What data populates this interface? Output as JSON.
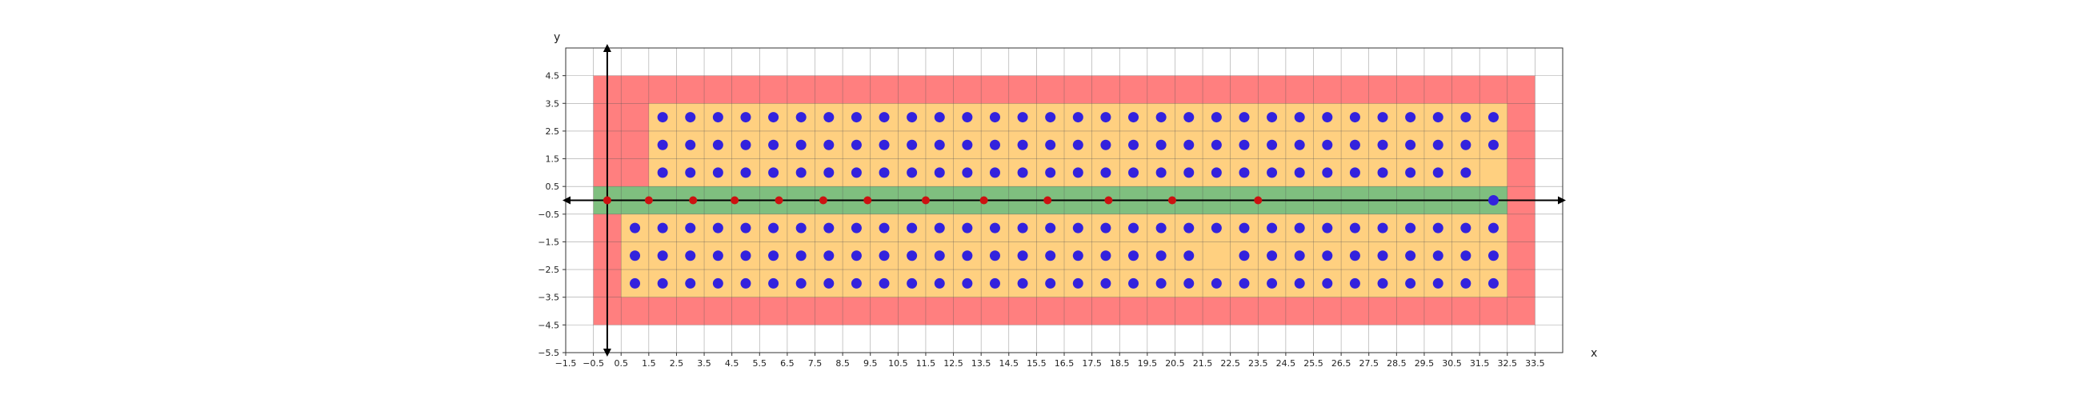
{
  "chart_data": {
    "type": "scatter",
    "title": "",
    "xlabel": "x",
    "ylabel": "y",
    "xlim": [
      -1.5,
      34.5
    ],
    "ylim": [
      -5.5,
      5.5
    ],
    "grid": true,
    "x_ticks": [
      "−1.5",
      "−0.5",
      "0.5",
      "1.5",
      "2.5",
      "3.5",
      "4.5",
      "5.5",
      "6.5",
      "7.5",
      "8.5",
      "9.5",
      "10.5",
      "11.5",
      "12.5",
      "13.5",
      "14.5",
      "15.5",
      "16.5",
      "17.5",
      "18.5",
      "19.5",
      "20.5",
      "21.5",
      "22.5",
      "23.5",
      "24.5",
      "25.5",
      "26.5",
      "27.5",
      "28.5",
      "29.5",
      "30.5",
      "31.5",
      "32.5",
      "33.5"
    ],
    "y_ticks": [
      "−5.5",
      "−4.5",
      "−3.5",
      "−2.5",
      "−1.5",
      "−0.5",
      "0.5",
      "1.5",
      "2.5",
      "3.5",
      "4.5"
    ],
    "regions": [
      {
        "color": "#ff7f7f",
        "x": [
          -0.5,
          33.5
        ],
        "y": [
          -4.5,
          4.5
        ]
      },
      {
        "color": "#ffd080",
        "x": [
          1.5,
          32.5
        ],
        "y": [
          0.5,
          3.5
        ]
      },
      {
        "color": "#ffd080",
        "x": [
          0.5,
          32.5
        ],
        "y": [
          -3.5,
          -0.5
        ]
      },
      {
        "color": "#7fbf7f",
        "x": [
          -0.5,
          32.5
        ],
        "y": [
          -0.5,
          0.5
        ]
      }
    ],
    "series": [
      {
        "marker_color": "#3322dd",
        "points": [
          [
            2,
            3
          ],
          [
            3,
            3
          ],
          [
            4,
            3
          ],
          [
            5,
            3
          ],
          [
            6,
            3
          ],
          [
            7,
            3
          ],
          [
            8,
            3
          ],
          [
            9,
            3
          ],
          [
            10,
            3
          ],
          [
            11,
            3
          ],
          [
            12,
            3
          ],
          [
            13,
            3
          ],
          [
            14,
            3
          ],
          [
            15,
            3
          ],
          [
            16,
            3
          ],
          [
            17,
            3
          ],
          [
            18,
            3
          ],
          [
            19,
            3
          ],
          [
            20,
            3
          ],
          [
            21,
            3
          ],
          [
            22,
            3
          ],
          [
            23,
            3
          ],
          [
            24,
            3
          ],
          [
            25,
            3
          ],
          [
            26,
            3
          ],
          [
            27,
            3
          ],
          [
            28,
            3
          ],
          [
            29,
            3
          ],
          [
            30,
            3
          ],
          [
            31,
            3
          ],
          [
            32,
            3
          ],
          [
            2,
            2
          ],
          [
            3,
            2
          ],
          [
            4,
            2
          ],
          [
            5,
            2
          ],
          [
            6,
            2
          ],
          [
            7,
            2
          ],
          [
            8,
            2
          ],
          [
            9,
            2
          ],
          [
            10,
            2
          ],
          [
            11,
            2
          ],
          [
            12,
            2
          ],
          [
            13,
            2
          ],
          [
            14,
            2
          ],
          [
            15,
            2
          ],
          [
            16,
            2
          ],
          [
            17,
            2
          ],
          [
            18,
            2
          ],
          [
            19,
            2
          ],
          [
            20,
            2
          ],
          [
            21,
            2
          ],
          [
            22,
            2
          ],
          [
            23,
            2
          ],
          [
            24,
            2
          ],
          [
            25,
            2
          ],
          [
            26,
            2
          ],
          [
            27,
            2
          ],
          [
            28,
            2
          ],
          [
            29,
            2
          ],
          [
            30,
            2
          ],
          [
            31,
            2
          ],
          [
            32,
            2
          ],
          [
            2,
            1
          ],
          [
            3,
            1
          ],
          [
            4,
            1
          ],
          [
            5,
            1
          ],
          [
            6,
            1
          ],
          [
            7,
            1
          ],
          [
            8,
            1
          ],
          [
            9,
            1
          ],
          [
            10,
            1
          ],
          [
            11,
            1
          ],
          [
            12,
            1
          ],
          [
            13,
            1
          ],
          [
            14,
            1
          ],
          [
            15,
            1
          ],
          [
            16,
            1
          ],
          [
            17,
            1
          ],
          [
            18,
            1
          ],
          [
            19,
            1
          ],
          [
            20,
            1
          ],
          [
            21,
            1
          ],
          [
            22,
            1
          ],
          [
            23,
            1
          ],
          [
            24,
            1
          ],
          [
            25,
            1
          ],
          [
            26,
            1
          ],
          [
            27,
            1
          ],
          [
            28,
            1
          ],
          [
            29,
            1
          ],
          [
            30,
            1
          ],
          [
            31,
            1
          ],
          [
            32,
            0
          ],
          [
            1,
            -1
          ],
          [
            2,
            -1
          ],
          [
            3,
            -1
          ],
          [
            4,
            -1
          ],
          [
            5,
            -1
          ],
          [
            6,
            -1
          ],
          [
            7,
            -1
          ],
          [
            8,
            -1
          ],
          [
            9,
            -1
          ],
          [
            10,
            -1
          ],
          [
            11,
            -1
          ],
          [
            12,
            -1
          ],
          [
            13,
            -1
          ],
          [
            14,
            -1
          ],
          [
            15,
            -1
          ],
          [
            16,
            -1
          ],
          [
            17,
            -1
          ],
          [
            18,
            -1
          ],
          [
            19,
            -1
          ],
          [
            20,
            -1
          ],
          [
            21,
            -1
          ],
          [
            22,
            -1
          ],
          [
            23,
            -1
          ],
          [
            24,
            -1
          ],
          [
            25,
            -1
          ],
          [
            26,
            -1
          ],
          [
            27,
            -1
          ],
          [
            28,
            -1
          ],
          [
            29,
            -1
          ],
          [
            30,
            -1
          ],
          [
            31,
            -1
          ],
          [
            32,
            -1
          ],
          [
            1,
            -2
          ],
          [
            2,
            -2
          ],
          [
            3,
            -2
          ],
          [
            4,
            -2
          ],
          [
            5,
            -2
          ],
          [
            6,
            -2
          ],
          [
            7,
            -2
          ],
          [
            8,
            -2
          ],
          [
            9,
            -2
          ],
          [
            10,
            -2
          ],
          [
            11,
            -2
          ],
          [
            12,
            -2
          ],
          [
            13,
            -2
          ],
          [
            14,
            -2
          ],
          [
            15,
            -2
          ],
          [
            16,
            -2
          ],
          [
            17,
            -2
          ],
          [
            18,
            -2
          ],
          [
            19,
            -2
          ],
          [
            20,
            -2
          ],
          [
            21,
            -2
          ],
          [
            23,
            -2
          ],
          [
            24,
            -2
          ],
          [
            25,
            -2
          ],
          [
            26,
            -2
          ],
          [
            27,
            -2
          ],
          [
            28,
            -2
          ],
          [
            29,
            -2
          ],
          [
            30,
            -2
          ],
          [
            31,
            -2
          ],
          [
            32,
            -2
          ],
          [
            1,
            -3
          ],
          [
            2,
            -3
          ],
          [
            3,
            -3
          ],
          [
            4,
            -3
          ],
          [
            5,
            -3
          ],
          [
            6,
            -3
          ],
          [
            7,
            -3
          ],
          [
            8,
            -3
          ],
          [
            9,
            -3
          ],
          [
            10,
            -3
          ],
          [
            11,
            -3
          ],
          [
            12,
            -3
          ],
          [
            13,
            -3
          ],
          [
            14,
            -3
          ],
          [
            15,
            -3
          ],
          [
            16,
            -3
          ],
          [
            17,
            -3
          ],
          [
            18,
            -3
          ],
          [
            19,
            -3
          ],
          [
            20,
            -3
          ],
          [
            21,
            -3
          ],
          [
            22,
            -3
          ],
          [
            23,
            -3
          ],
          [
            24,
            -3
          ],
          [
            25,
            -3
          ],
          [
            26,
            -3
          ],
          [
            27,
            -3
          ],
          [
            28,
            -3
          ],
          [
            29,
            -3
          ],
          [
            30,
            -3
          ],
          [
            31,
            -3
          ],
          [
            32,
            -3
          ]
        ]
      },
      {
        "marker_color": "#cc1111",
        "points": [
          [
            0,
            0
          ],
          [
            1.5,
            0
          ],
          [
            3.1,
            0
          ],
          [
            4.6,
            0
          ],
          [
            6.2,
            0
          ],
          [
            7.8,
            0
          ],
          [
            9.4,
            0
          ],
          [
            11.5,
            0
          ],
          [
            13.6,
            0
          ],
          [
            15.9,
            0
          ],
          [
            18.1,
            0
          ],
          [
            20.4,
            0
          ],
          [
            23.5,
            0
          ]
        ]
      }
    ]
  }
}
